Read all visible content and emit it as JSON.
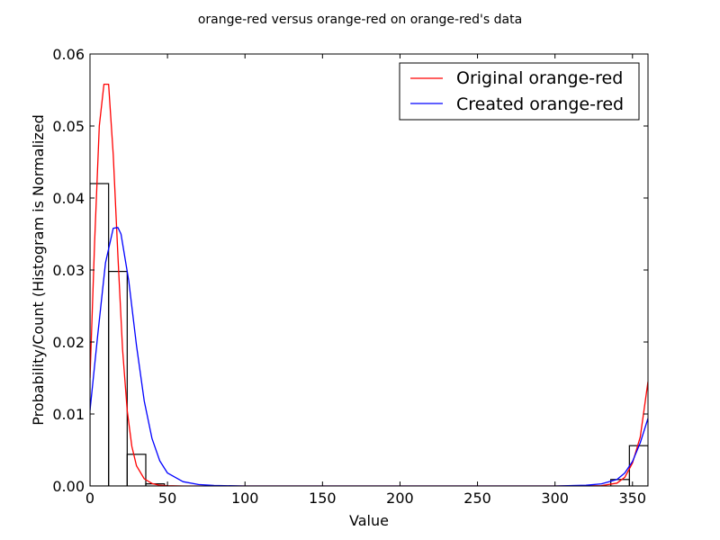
{
  "chart_data": {
    "type": "line",
    "title": "orange-red versus orange-red on orange-red's data",
    "xlabel": "Value",
    "ylabel": "Probability/Count (Histogram is Normalized",
    "xlim": [
      0,
      360
    ],
    "ylim": [
      0,
      0.06
    ],
    "x_ticks": [
      0,
      50,
      100,
      150,
      200,
      250,
      300,
      350
    ],
    "y_ticks": [
      0.0,
      0.01,
      0.02,
      0.03,
      0.04,
      0.05,
      0.06
    ],
    "y_tick_labels": [
      "0.00",
      "0.01",
      "0.02",
      "0.03",
      "0.04",
      "0.05",
      "0.06"
    ],
    "grid": false,
    "legend_position": "top-right",
    "histogram": {
      "bins": [
        [
          0,
          12
        ],
        [
          12,
          24
        ],
        [
          24,
          36
        ],
        [
          36,
          48
        ],
        [
          336,
          348
        ],
        [
          348,
          360
        ]
      ],
      "values": [
        0.042,
        0.0298,
        0.0044,
        0.0003,
        0.0009,
        0.0056
      ]
    },
    "series": [
      {
        "name": "Original orange-red",
        "color": "#ff0000",
        "x": [
          0,
          3,
          6,
          9,
          12,
          15,
          18,
          21,
          24,
          27,
          30,
          35,
          40,
          45,
          50,
          60,
          80,
          100,
          200,
          300,
          330,
          340,
          345,
          350,
          355,
          360
        ],
        "y": [
          0.015,
          0.034,
          0.05,
          0.0558,
          0.0558,
          0.046,
          0.032,
          0.019,
          0.0105,
          0.0055,
          0.0028,
          0.001,
          0.00035,
          0.0001,
          5e-05,
          0.0,
          0.0,
          0.0,
          0.0,
          0.0,
          5e-05,
          0.0004,
          0.0012,
          0.0032,
          0.0068,
          0.0145
        ]
      },
      {
        "name": "Created orange-red",
        "color": "#0000ff",
        "x": [
          0,
          5,
          10,
          15,
          18,
          20,
          25,
          30,
          35,
          40,
          45,
          50,
          60,
          70,
          80,
          100,
          150,
          200,
          300,
          320,
          330,
          340,
          345,
          350,
          355,
          360
        ],
        "y": [
          0.0105,
          0.021,
          0.031,
          0.0358,
          0.0359,
          0.035,
          0.0285,
          0.0195,
          0.0118,
          0.0066,
          0.0035,
          0.0018,
          0.0006,
          0.0002,
          7e-05,
          0.0,
          0.0,
          0.0,
          0.0,
          0.0001,
          0.0003,
          0.0009,
          0.0018,
          0.0034,
          0.006,
          0.0094
        ]
      }
    ]
  }
}
